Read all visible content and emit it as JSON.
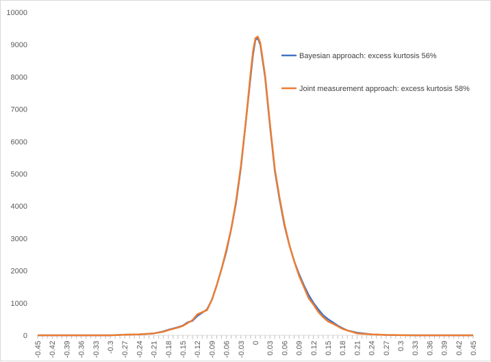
{
  "chart_data": {
    "type": "line",
    "title": "",
    "xlabel": "",
    "ylabel": "",
    "ylim": [
      0,
      10000
    ],
    "yticks": [
      0,
      1000,
      2000,
      3000,
      4000,
      5000,
      6000,
      7000,
      8000,
      9000,
      10000
    ],
    "xlim": [
      -0.45,
      0.45
    ],
    "xtick_labels": [
      "-0.45",
      "-0.42",
      "-0.39",
      "-0.36",
      "-0.33",
      "-0.3",
      "-0.27",
      "-0.24",
      "-0.21",
      "-0.18",
      "-0.15",
      "-0.12",
      "-0.09",
      "-0.06",
      "-0.03",
      "0",
      "0.03",
      "0.06",
      "0.09",
      "0.12",
      "0.15",
      "0.18",
      "0.21",
      "0.24",
      "0.27",
      "0.3",
      "0.33",
      "0.36",
      "0.39",
      "0.42",
      "0.45"
    ],
    "grid": false,
    "legend_position": "top-right",
    "x": [
      -0.45,
      -0.3,
      -0.27,
      -0.24,
      -0.21,
      -0.19,
      -0.18,
      -0.16,
      -0.15,
      -0.14,
      -0.13,
      -0.12,
      -0.1,
      -0.09,
      -0.08,
      -0.07,
      -0.06,
      -0.05,
      -0.04,
      -0.03,
      -0.02,
      -0.01,
      -0.005,
      0,
      0.005,
      0.01,
      0.02,
      0.03,
      0.04,
      0.05,
      0.06,
      0.07,
      0.08,
      0.09,
      0.1,
      0.11,
      0.12,
      0.13,
      0.14,
      0.15,
      0.16,
      0.17,
      0.18,
      0.19,
      0.21,
      0.24,
      0.27,
      0.3,
      0.33,
      0.45
    ],
    "series": [
      {
        "name": "Bayesian approach: excess kurtosis 56%",
        "color": "#4472c4",
        "values": [
          0,
          0,
          20,
          30,
          60,
          120,
          170,
          250,
          300,
          400,
          450,
          600,
          800,
          1100,
          1550,
          2050,
          2600,
          3300,
          4100,
          5200,
          6600,
          8000,
          8700,
          9150,
          9200,
          9000,
          8000,
          6500,
          5100,
          4200,
          3400,
          2800,
          2300,
          1900,
          1550,
          1250,
          1000,
          800,
          620,
          500,
          400,
          300,
          220,
          150,
          80,
          30,
          10,
          5,
          0,
          0
        ]
      },
      {
        "name": "Joint measurement approach: excess kurtosis 58%",
        "color": "#ed7d31",
        "values": [
          0,
          0,
          20,
          30,
          60,
          110,
          160,
          240,
          290,
          380,
          470,
          650,
          780,
          1100,
          1550,
          2050,
          2650,
          3300,
          4150,
          5250,
          6600,
          8100,
          8800,
          9200,
          9250,
          9050,
          8050,
          6550,
          5150,
          4250,
          3450,
          2800,
          2300,
          1850,
          1500,
          1150,
          950,
          720,
          560,
          430,
          360,
          280,
          200,
          150,
          60,
          30,
          10,
          5,
          0,
          0
        ]
      }
    ]
  }
}
